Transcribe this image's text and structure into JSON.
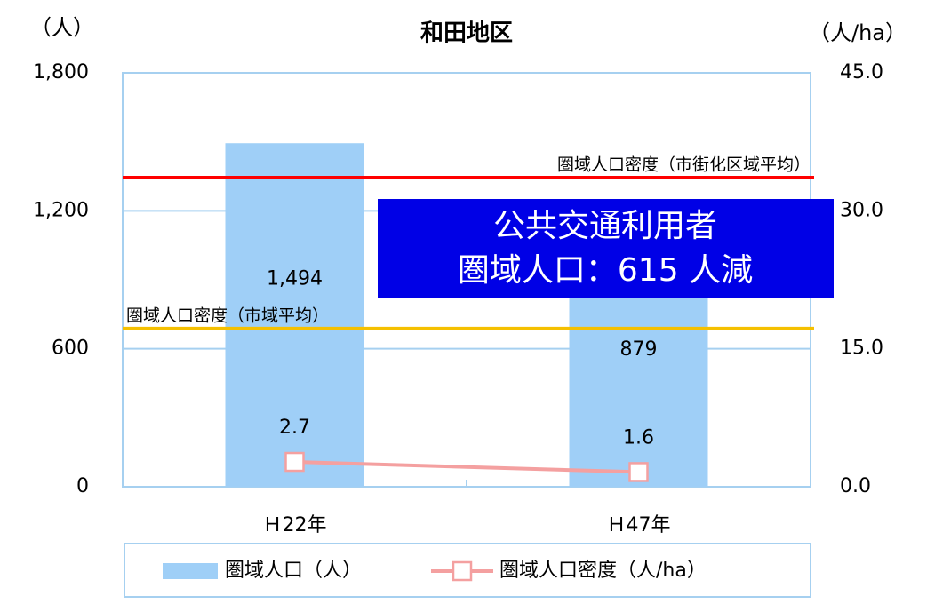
{
  "chart_data": {
    "type": "bar",
    "title": "和田地区",
    "y_label": "（人）",
    "y2_label": "（人/ha）",
    "categories": [
      "Ｈ22年",
      "Ｈ47年"
    ],
    "series": [
      {
        "name": "圏域人口（人）",
        "type": "bar",
        "color": "#9fcff7",
        "values": [
          1494,
          879
        ],
        "value_labels": [
          "1,494",
          "879"
        ]
      },
      {
        "name": "圏域人口密度（人/ha）",
        "type": "line",
        "axis": "y2",
        "color": "#f4a0a0",
        "values": [
          2.7,
          1.6
        ]
      }
    ],
    "reference_lines": [
      {
        "label": "圏域人口密度（市街化区域平均）",
        "value": 33.6,
        "axis": "y2",
        "color": "#ff0000"
      },
      {
        "label": "圏域人口密度（市域平均）",
        "value": 17.2,
        "axis": "y2",
        "color": "#f5c000"
      }
    ],
    "annotation": {
      "lines": [
        "公共交通利用者",
        "圏域人口：615 人減"
      ],
      "color": "#0000e6"
    },
    "ylim": [
      0,
      1800
    ],
    "yticks": [
      0,
      600,
      {
        "value": 1200,
        "label": "1,200"
      },
      {
        "value": 1800,
        "label": "1,800"
      }
    ],
    "y2lim": [
      0,
      45
    ],
    "y2ticks": [
      {
        "value": 0,
        "label": "0.0"
      },
      {
        "value": 15,
        "label": "15.0"
      },
      {
        "value": 30,
        "label": "30.0"
      },
      {
        "value": 45,
        "label": "45.0"
      }
    ],
    "grid": true,
    "legend": "bottom"
  }
}
